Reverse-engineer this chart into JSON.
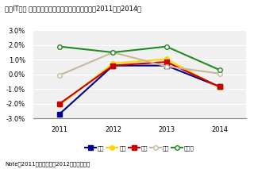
{
  "title": "国内IT市場 主要産業の前年比成長率の推移予測：2011年～2014年",
  "note": "Note：2011年は実績値、2012年以降は予測",
  "years": [
    2011,
    2012,
    2013,
    2014
  ],
  "series": [
    {
      "name": "金融",
      "color": "#00008B",
      "marker": "s",
      "markerface": "#00008B",
      "values": [
        -2.7,
        0.6,
        0.6,
        -0.85
      ]
    },
    {
      "name": "製造",
      "color": "#FFD700",
      "marker": "o",
      "markerface": "#FFD700",
      "values": [
        -2.1,
        0.75,
        1.05,
        -0.9
      ]
    },
    {
      "name": "流通",
      "color": "#CC0000",
      "marker": "s",
      "markerface": "#CC0000",
      "values": [
        -2.0,
        0.6,
        0.85,
        -0.85
      ]
    },
    {
      "name": "医療",
      "color": "#C8B89A",
      "marker": "o",
      "markerface": "white",
      "values": [
        -0.05,
        1.5,
        0.55,
        0.05
      ]
    },
    {
      "name": "官公庁",
      "color": "#228B22",
      "marker": "o",
      "markerface": "white",
      "values": [
        1.9,
        1.5,
        1.9,
        0.3
      ]
    }
  ],
  "ylim": [
    -3.0,
    3.0
  ],
  "yticks": [
    -3.0,
    -2.0,
    -1.0,
    0.0,
    1.0,
    2.0,
    3.0
  ],
  "bg_color": "#ffffff",
  "plot_bg_color": "#f0f0f0"
}
